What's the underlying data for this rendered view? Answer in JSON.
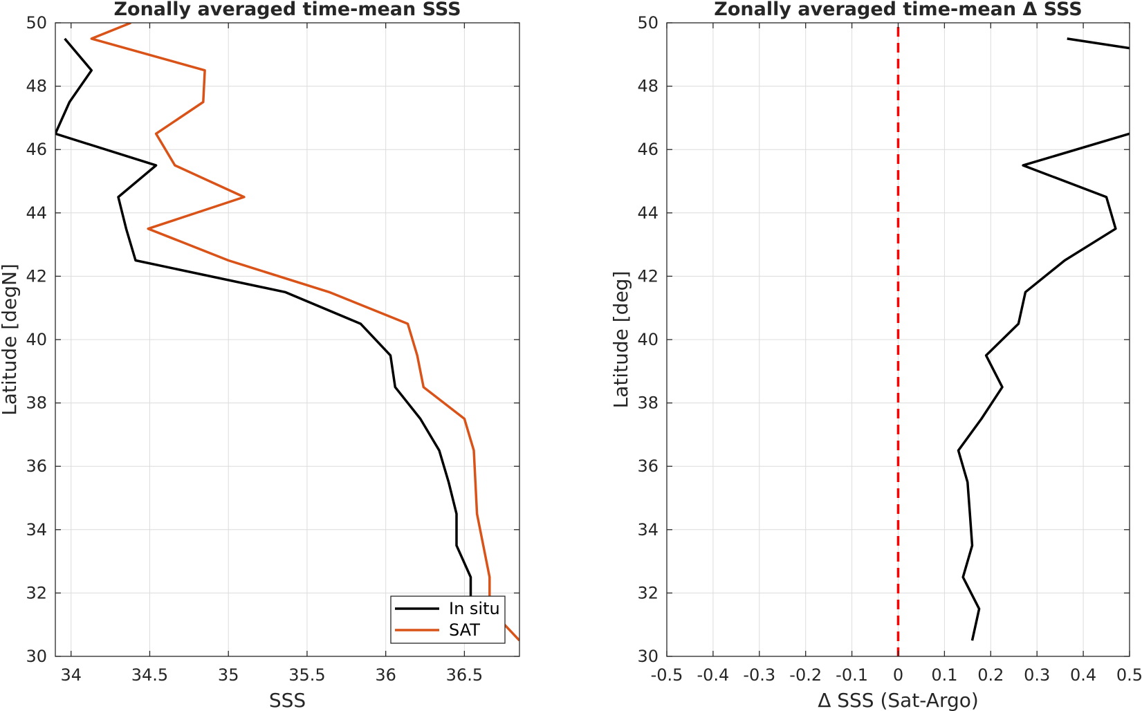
{
  "chart_data": [
    {
      "type": "line",
      "title": "Zonally averaged time-mean SSS",
      "xlabel": "SSS",
      "ylabel": "Latitude [degN]",
      "xlim": [
        33.9,
        36.85
      ],
      "ylim": [
        30,
        50
      ],
      "xticks": [
        34,
        34.5,
        35,
        35.5,
        36,
        36.5
      ],
      "xtick_labels": [
        "34",
        "34.5",
        "35",
        "35.5",
        "36",
        "36.5"
      ],
      "yticks": [
        30,
        32,
        34,
        36,
        38,
        40,
        42,
        44,
        46,
        48,
        50
      ],
      "ytick_labels": [
        "30",
        "32",
        "34",
        "36",
        "38",
        "40",
        "42",
        "44",
        "46",
        "48",
        "50"
      ],
      "grid": true,
      "legend": "bottom-right",
      "series": [
        {
          "name": "In situ",
          "color": "#000000",
          "points": [
            [
              36.54,
              30.5
            ],
            [
              36.54,
              31.5
            ],
            [
              36.54,
              32.5
            ],
            [
              36.45,
              33.5
            ],
            [
              36.45,
              34.5
            ],
            [
              36.4,
              35.5
            ],
            [
              36.34,
              36.5
            ],
            [
              36.22,
              37.5
            ],
            [
              36.06,
              38.5
            ],
            [
              36.03,
              39.5
            ],
            [
              35.84,
              40.5
            ],
            [
              35.36,
              41.5
            ],
            [
              34.41,
              42.5
            ],
            [
              34.35,
              43.5
            ],
            [
              34.3,
              44.5
            ],
            [
              34.54,
              45.5
            ],
            [
              33.9,
              46.5
            ],
            [
              33.99,
              47.5
            ],
            [
              34.13,
              48.5
            ],
            [
              33.96,
              49.5
            ]
          ]
        },
        {
          "name": "SAT",
          "color": "#d95319",
          "points": [
            [
              36.85,
              30.5
            ],
            [
              36.66,
              31.5
            ],
            [
              36.66,
              32.5
            ],
            [
              36.62,
              33.5
            ],
            [
              36.58,
              34.5
            ],
            [
              36.57,
              35.5
            ],
            [
              36.56,
              36.5
            ],
            [
              36.5,
              37.5
            ],
            [
              36.24,
              38.5
            ],
            [
              36.2,
              39.5
            ],
            [
              36.14,
              40.5
            ],
            [
              35.64,
              41.5
            ],
            [
              35.0,
              42.5
            ],
            [
              34.49,
              43.5
            ],
            [
              35.1,
              44.5
            ],
            [
              34.66,
              45.5
            ],
            [
              34.54,
              46.5
            ],
            [
              34.84,
              47.5
            ],
            [
              34.85,
              48.5
            ],
            [
              34.13,
              49.5
            ],
            [
              34.38,
              50.0
            ]
          ]
        }
      ]
    },
    {
      "type": "line",
      "title": "Zonally averaged time-mean Δ SSS",
      "xlabel": "Δ SSS (Sat-Argo)",
      "ylabel": "Latitude [deg]",
      "xlim": [
        -0.5,
        0.5
      ],
      "ylim": [
        30,
        50
      ],
      "xticks": [
        -0.5,
        -0.4,
        -0.3,
        -0.2,
        -0.1,
        0,
        0.1,
        0.2,
        0.3,
        0.4,
        0.5
      ],
      "xtick_labels": [
        "-0.5",
        "-0.4",
        "-0.3",
        "-0.2",
        "-0.1",
        "0",
        "0.1",
        "0.2",
        "0.3",
        "0.4",
        "0.5"
      ],
      "yticks": [
        30,
        32,
        34,
        36,
        38,
        40,
        42,
        44,
        46,
        48,
        50
      ],
      "ytick_labels": [
        "30",
        "32",
        "34",
        "36",
        "38",
        "40",
        "42",
        "44",
        "46",
        "48",
        "50"
      ],
      "grid": true,
      "reference_line": {
        "x": 0,
        "color": "#ff0000",
        "style": "dashed"
      },
      "series": [
        {
          "color": "#000000",
          "segments": [
            [
              [
                0.16,
                30.5
              ],
              [
                0.175,
                31.5
              ],
              [
                0.14,
                32.5
              ],
              [
                0.16,
                33.5
              ],
              [
                0.155,
                34.5
              ],
              [
                0.15,
                35.5
              ],
              [
                0.13,
                36.5
              ],
              [
                0.18,
                37.5
              ],
              [
                0.225,
                38.5
              ],
              [
                0.19,
                39.5
              ],
              [
                0.26,
                40.5
              ],
              [
                0.275,
                41.5
              ],
              [
                0.36,
                42.5
              ],
              [
                0.47,
                43.5
              ],
              [
                0.45,
                44.5
              ],
              [
                0.27,
                45.5
              ],
              [
                0.5,
                46.5
              ]
            ],
            [
              [
                0.365,
                49.5
              ],
              [
                0.5,
                49.2
              ]
            ]
          ]
        }
      ]
    }
  ]
}
